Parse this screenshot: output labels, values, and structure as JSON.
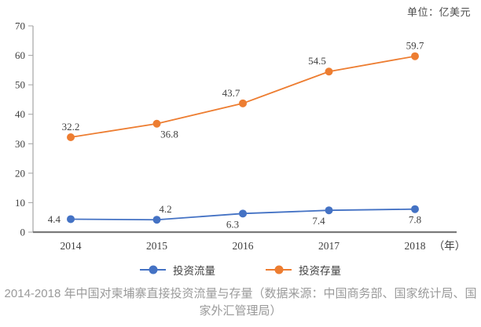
{
  "chart_data": {
    "type": "line",
    "title": "2014-2018 年中国对柬埔寨直接投资流量与存量（数据来源：中国商务部、国家统计局、国家外汇管理局）",
    "unit": "单位：亿美元",
    "x_suffix": "（年）",
    "categories": [
      "2014",
      "2015",
      "2016",
      "2017",
      "2018"
    ],
    "series": [
      {
        "name": "投资流量",
        "color": "#4472C4",
        "values": [
          4.4,
          4.2,
          6.3,
          7.4,
          7.8
        ],
        "label_positions": [
          "left",
          "above-right",
          "below-left",
          "below-left",
          "below"
        ]
      },
      {
        "name": "投资存量",
        "color": "#ED7D31",
        "values": [
          32.2,
          36.8,
          43.7,
          54.5,
          59.7
        ],
        "label_positions": [
          "above",
          "below-right",
          "above-left",
          "above-left",
          "above"
        ]
      }
    ],
    "ylim": [
      0,
      70
    ],
    "ytick_step": 10,
    "grid": false,
    "legend_position": "bottom",
    "label_color": "#404040",
    "axis_color": "#a3a3a3"
  }
}
